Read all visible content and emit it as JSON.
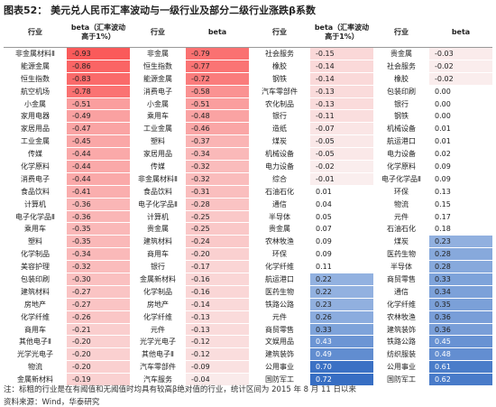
{
  "title": "图表52： 美元兑人民币汇率波动与一级行业及部分二级行业涨跌β系数",
  "headers": [
    "行业",
    "beta（汇率波动高于1%）",
    "行业",
    "beta",
    "行业",
    "beta（汇率波动高于1%）",
    "行业",
    "beta"
  ],
  "rows": [
    [
      "非金属材料Ⅱ",
      "-0.93",
      "非金属",
      "-0.79",
      "社会服务",
      "-0.15",
      "贵金属",
      "-0.03"
    ],
    [
      "能源金属",
      "-0.86",
      "恒生指数",
      "-0.77",
      "橡胶",
      "-0.14",
      "社会服务",
      "-0.02"
    ],
    [
      "恒生指数",
      "-0.83",
      "能源金属",
      "-0.72",
      "钢铁",
      "-0.14",
      "橡胶",
      "-0.02"
    ],
    [
      "航空机场",
      "-0.78",
      "消费电子",
      "-0.58",
      "汽车零部件",
      "-0.13",
      "包装印刷",
      "0.00"
    ],
    [
      "小金属",
      "-0.51",
      "小金属",
      "-0.51",
      "农化制品",
      "-0.13",
      "银行",
      "0.00"
    ],
    [
      "家用电器",
      "-0.49",
      "乘用车",
      "-0.48",
      "银行",
      "-0.11",
      "钢铁",
      "0.00"
    ],
    [
      "家居用品",
      "-0.47",
      "工业金属",
      "-0.46",
      "造纸",
      "-0.07",
      "机械设备",
      "0.01"
    ],
    [
      "工业金属",
      "-0.45",
      "塑料",
      "-0.37",
      "煤炭",
      "-0.05",
      "航运港口",
      "0.01"
    ],
    [
      "传媒",
      "-0.44",
      "家居用品",
      "-0.34",
      "机械设备",
      "-0.05",
      "电力设备",
      "0.02"
    ],
    [
      "化学原料",
      "-0.44",
      "传媒",
      "-0.32",
      "电力设备",
      "-0.02",
      "化学原料",
      "0.09"
    ],
    [
      "消费电子",
      "-0.44",
      "非金属材料Ⅱ",
      "-0.32",
      "综合",
      "-0.01",
      "电子化学品Ⅱ",
      "0.09"
    ],
    [
      "食品饮料",
      "-0.41",
      "食品饮料",
      "-0.31",
      "石油石化",
      "0.01",
      "环保",
      "0.13"
    ],
    [
      "计算机",
      "-0.36",
      "电子化学品Ⅱ",
      "-0.28",
      "通信",
      "0.04",
      "物流",
      "0.15"
    ],
    [
      "电子化学品Ⅱ",
      "-0.36",
      "计算机",
      "-0.25",
      "半导体",
      "0.05",
      "元件",
      "0.17"
    ],
    [
      "乘用车",
      "-0.35",
      "贵金属",
      "-0.25",
      "贵金属",
      "0.07",
      "石油石化",
      "0.18"
    ],
    [
      "塑料",
      "-0.35",
      "建筑材料",
      "-0.24",
      "农林牧渔",
      "0.09",
      "煤炭",
      "0.23"
    ],
    [
      "化学制品",
      "-0.34",
      "商用车",
      "-0.20",
      "环保",
      "0.09",
      "医药生物",
      "0.28"
    ],
    [
      "美容护理",
      "-0.32",
      "银行",
      "-0.17",
      "化学纤维",
      "0.11",
      "半导体",
      "0.28"
    ],
    [
      "包装印刷",
      "-0.30",
      "金属新材料",
      "-0.16",
      "航运港口",
      "0.22",
      "商贸零售",
      "0.33"
    ],
    [
      "建筑材料",
      "-0.27",
      "化学制品",
      "-0.16",
      "医药生物",
      "0.22",
      "通信",
      "0.34"
    ],
    [
      "房地产",
      "-0.27",
      "房地产",
      "-0.14",
      "铁路公路",
      "0.23",
      "化学纤维",
      "0.35"
    ],
    [
      "化学纤维",
      "-0.26",
      "化学纤维",
      "-0.13",
      "元件",
      "0.26",
      "农林牧渔",
      "0.36"
    ],
    [
      "商用车",
      "-0.21",
      "元件",
      "-0.13",
      "商贸零售",
      "0.33",
      "建筑装饰",
      "0.36"
    ],
    [
      "其他电子Ⅱ",
      "-0.20",
      "光学光电子",
      "-0.12",
      "文娱用品",
      "0.43",
      "铁路公路",
      "0.45"
    ],
    [
      "光学光电子",
      "-0.20",
      "其他电子Ⅱ",
      "-0.12",
      "建筑装饰",
      "0.49",
      "纺织服装",
      "0.48"
    ],
    [
      "物流",
      "-0.20",
      "汽车零部件",
      "-0.09",
      "公用事业",
      "0.70",
      "公用事业",
      "0.61"
    ],
    [
      "金属新材料",
      "-0.19",
      "汽车服务",
      "-0.04",
      "国防军工",
      "0.72",
      "国防军工",
      "0.62"
    ]
  ],
  "notes": [
    "注：标粗的行业是在有阈值和无阈值时均具有较高β绝对值的行业，统计区间为 2015 年 8 月 11 日以来",
    "资料来源：Wind，华泰研究"
  ]
}
